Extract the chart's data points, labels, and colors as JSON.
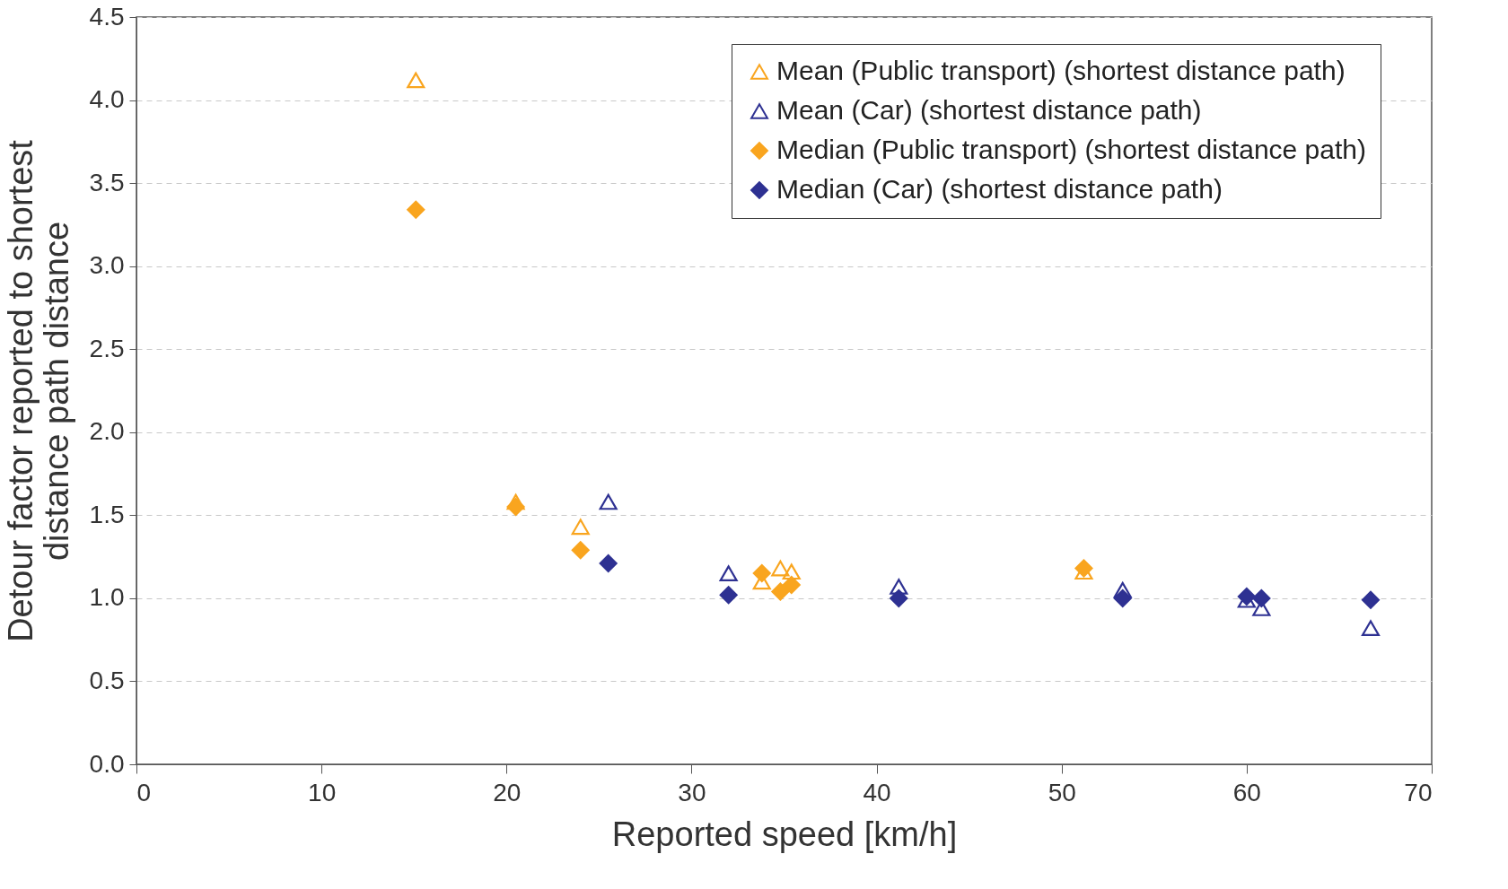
{
  "chart_data": {
    "type": "scatter",
    "xlabel": "Reported speed [km/h]",
    "ylabel": "Detour factor reported to shortest distance path distance",
    "xlim": [
      0,
      70
    ],
    "xticks": [
      0,
      10,
      20,
      30,
      40,
      50,
      60,
      70
    ],
    "ylim": [
      0,
      4.5
    ],
    "yticks": [
      {
        "value": 0,
        "label": "0.0"
      },
      {
        "value": 0.5,
        "label": "0.5"
      },
      {
        "value": 1,
        "label": "1.0"
      },
      {
        "value": 1.5,
        "label": "1.5"
      },
      {
        "value": 2,
        "label": "2.0"
      },
      {
        "value": 2.5,
        "label": "2.5"
      },
      {
        "value": 3,
        "label": "3.0"
      },
      {
        "value": 3.5,
        "label": "3.5"
      },
      {
        "value": 4,
        "label": "4.0"
      },
      {
        "value": 4.5,
        "label": "4.5"
      }
    ],
    "grid": "y",
    "legend": "top right",
    "series": [
      {
        "name": "Mean  (Public transport) (shortest distance path)",
        "color": "#f9a51f",
        "marker": "triangle",
        "x": [
          15.1,
          20.5,
          24.0,
          33.8,
          34.8,
          35.4,
          51.2
        ],
        "values": [
          4.12,
          1.58,
          1.43,
          1.1,
          1.18,
          1.16,
          1.16
        ]
      },
      {
        "name": "Mean (Car) (shortest distance path)",
        "color": "#2e3192",
        "marker": "triangle",
        "x": [
          25.5,
          32.0,
          41.2,
          53.3,
          60.0,
          60.8,
          66.7
        ],
        "values": [
          1.58,
          1.15,
          1.07,
          1.05,
          0.99,
          0.94,
          0.82
        ]
      },
      {
        "name": "Median (Public transport) (shortest distance path)",
        "color": "#f9a51f",
        "marker": "diamond",
        "x": [
          15.1,
          20.5,
          24.0,
          33.8,
          34.8,
          35.4,
          51.2
        ],
        "values": [
          3.34,
          1.55,
          1.29,
          1.15,
          1.04,
          1.08,
          1.18
        ]
      },
      {
        "name": "Median  (Car) (shortest distance path)",
        "color": "#2e3192",
        "marker": "diamond",
        "x": [
          25.5,
          32.0,
          41.2,
          53.3,
          60.0,
          60.8,
          66.7
        ],
        "values": [
          1.21,
          1.02,
          1.0,
          1.0,
          1.01,
          1.0,
          0.99
        ]
      }
    ]
  }
}
